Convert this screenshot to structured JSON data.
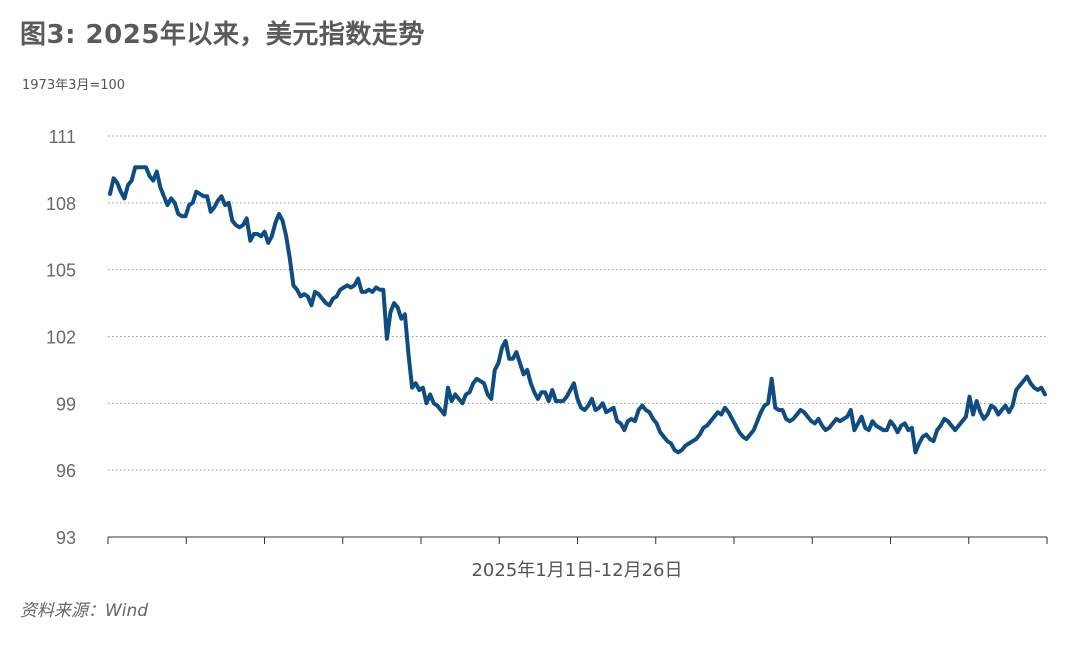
{
  "header": {
    "title": "图3: 2025年以来，美元指数走势",
    "unit": "1973年3月=100"
  },
  "footer": {
    "source": "资料来源：Wind"
  },
  "chart_data": {
    "type": "line",
    "title": "图3: 2025年以来，美元指数走势",
    "xlabel": "2025年1月1日-12月26日",
    "ylabel": "1973年3月=100",
    "ylim": [
      93,
      111
    ],
    "yticks": [
      93,
      96,
      99,
      102,
      105,
      108,
      111
    ],
    "grid": "horizontal dotted",
    "line_color": "#0f4d80",
    "series": [
      {
        "name": "",
        "x": [
          0,
          1,
          2,
          3,
          4,
          5,
          6,
          7,
          8,
          9,
          10,
          11,
          12,
          13,
          14,
          15,
          16,
          17,
          18,
          19,
          20,
          21,
          22,
          23,
          24,
          25,
          26,
          27,
          28,
          29,
          30,
          31,
          32,
          33,
          34,
          35,
          36,
          37,
          38,
          39,
          40,
          41,
          42,
          43,
          44,
          45,
          46,
          47,
          48,
          49,
          50,
          51,
          52,
          53,
          54,
          55,
          56,
          57,
          58,
          59,
          60,
          61,
          62,
          63,
          64,
          65,
          66,
          67,
          68,
          69,
          70,
          71,
          72,
          73,
          74,
          75,
          76,
          77,
          78,
          79,
          80,
          81,
          82,
          83,
          84,
          85,
          86,
          87,
          88,
          89,
          90,
          91,
          92,
          93,
          94,
          95,
          96,
          97,
          98,
          99,
          100,
          101,
          102,
          103,
          104,
          105,
          106,
          107,
          108,
          109,
          110,
          111,
          112,
          113,
          114,
          115,
          116,
          117,
          118,
          119,
          120,
          121,
          122,
          123,
          124,
          125,
          126,
          127,
          128,
          129,
          130,
          131,
          132,
          133,
          134,
          135,
          136,
          137,
          138,
          139,
          140,
          141,
          142,
          143,
          144,
          145,
          146,
          147,
          148,
          149,
          150,
          151,
          152,
          153,
          154,
          155,
          156,
          157,
          158,
          159,
          160,
          161,
          162,
          163,
          164,
          165,
          166,
          167,
          168,
          169,
          170,
          171,
          172,
          173,
          174,
          175,
          176,
          177,
          178,
          179,
          180,
          181,
          182,
          183,
          184,
          185,
          186,
          187,
          188,
          189,
          190,
          191,
          192,
          193,
          194,
          195,
          196,
          197,
          198,
          199,
          200,
          201,
          202,
          203,
          204,
          205,
          206,
          207,
          208,
          209,
          210,
          211,
          212,
          213,
          214,
          215,
          216,
          217,
          218,
          219,
          220,
          221,
          222,
          223,
          224,
          225,
          226,
          227,
          228,
          229,
          230,
          231,
          232,
          233,
          234,
          235,
          236,
          237,
          238,
          239,
          240,
          241,
          242,
          243,
          244,
          245,
          246,
          247,
          248,
          249,
          250,
          251,
          252,
          253,
          254,
          255,
          256,
          257,
          258,
          259,
          260
        ],
        "values": [
          108.4,
          109.1,
          108.9,
          108.5,
          108.2,
          108.8,
          109.0,
          109.6,
          109.6,
          109.6,
          109.6,
          109.2,
          109.0,
          109.4,
          108.7,
          108.3,
          107.9,
          108.2,
          108.0,
          107.5,
          107.4,
          107.4,
          107.9,
          108.0,
          108.5,
          108.4,
          108.3,
          108.3,
          107.6,
          107.8,
          108.1,
          108.3,
          107.9,
          108.0,
          107.2,
          107.0,
          106.9,
          107.0,
          107.3,
          106.3,
          106.6,
          106.6,
          106.5,
          106.7,
          106.2,
          106.5,
          107.1,
          107.5,
          107.2,
          106.5,
          105.5,
          104.3,
          104.1,
          103.8,
          103.9,
          103.8,
          103.4,
          104.0,
          103.9,
          103.7,
          103.5,
          103.4,
          103.7,
          103.8,
          104.1,
          104.2,
          104.3,
          104.2,
          104.3,
          104.6,
          104.0,
          104.0,
          104.1,
          104.0,
          104.2,
          104.1,
          104.1,
          101.9,
          103.1,
          103.5,
          103.3,
          102.8,
          103.0,
          101.2,
          99.7,
          99.9,
          99.6,
          99.7,
          99.0,
          99.4,
          99.0,
          98.9,
          98.7,
          98.5,
          99.7,
          99.1,
          99.4,
          99.2,
          99.0,
          99.4,
          99.5,
          99.9,
          100.1,
          100.0,
          99.9,
          99.4,
          99.2,
          100.5,
          100.8,
          101.5,
          101.8,
          101.0,
          101.0,
          101.3,
          100.8,
          100.3,
          100.5,
          99.9,
          99.5,
          99.2,
          99.5,
          99.5,
          99.1,
          99.6,
          99.1,
          99.1,
          99.1,
          99.3,
          99.6,
          99.9,
          99.2,
          98.8,
          98.7,
          98.9,
          99.2,
          98.7,
          98.8,
          99.0,
          98.6,
          98.7,
          98.8,
          98.2,
          98.1,
          97.8,
          98.2,
          98.3,
          98.2,
          98.7,
          98.9,
          98.7,
          98.6,
          98.3,
          98.1,
          97.7,
          97.5,
          97.3,
          97.2,
          96.9,
          96.8,
          96.9,
          97.1,
          97.2,
          97.3,
          97.4,
          97.6,
          97.9,
          98.0,
          98.2,
          98.4,
          98.6,
          98.5,
          98.8,
          98.6,
          98.3,
          98.0,
          97.7,
          97.5,
          97.4,
          97.6,
          97.8,
          98.2,
          98.6,
          98.9,
          99.0,
          100.1,
          98.8,
          98.7,
          98.7,
          98.3,
          98.2,
          98.3,
          98.5,
          98.7,
          98.6,
          98.4,
          98.2,
          98.1,
          98.3,
          98.0,
          97.8,
          97.9,
          98.1,
          98.3,
          98.2,
          98.3,
          98.4,
          98.7,
          97.8,
          98.1,
          98.4,
          97.9,
          97.8,
          98.2,
          98.0,
          97.9,
          97.8,
          97.8,
          98.2,
          98.0,
          97.7,
          98.0,
          98.1,
          97.8,
          97.9,
          96.8,
          97.2,
          97.5,
          97.6,
          97.4,
          97.3,
          97.8,
          98.0,
          98.3,
          98.2,
          98.0,
          97.8,
          98.0,
          98.2,
          98.4,
          99.3,
          98.5,
          99.1,
          98.6,
          98.3,
          98.5,
          98.9,
          98.8,
          98.5,
          98.7,
          98.9,
          98.6,
          98.9,
          99.6,
          99.8,
          100.0,
          100.2,
          99.9,
          99.7,
          99.6,
          99.7,
          99.4
        ]
      }
    ]
  }
}
